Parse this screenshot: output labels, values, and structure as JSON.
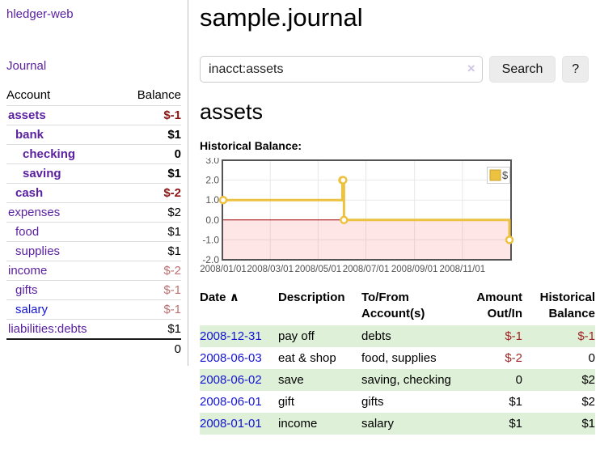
{
  "app": {
    "title": "hledger-web",
    "nav_journal": "Journal"
  },
  "sidebar": {
    "header": {
      "account": "Account",
      "balance": "Balance"
    },
    "accounts": [
      {
        "name": "assets",
        "depth": 0,
        "balance": "$-1",
        "bold": true,
        "neg": "strong"
      },
      {
        "name": "bank",
        "depth": 1,
        "balance": "$1",
        "bold": true,
        "neg": "none"
      },
      {
        "name": "checking",
        "depth": 2,
        "balance": "0",
        "bold": true,
        "neg": "none"
      },
      {
        "name": "saving",
        "depth": 2,
        "balance": "$1",
        "bold": true,
        "neg": "none"
      },
      {
        "name": "cash",
        "depth": 1,
        "balance": "$-2",
        "bold": true,
        "neg": "strong"
      },
      {
        "name": "expenses",
        "depth": 0,
        "balance": "$2",
        "bold": false,
        "neg": "none"
      },
      {
        "name": "food",
        "depth": 1,
        "balance": "$1",
        "bold": false,
        "neg": "none"
      },
      {
        "name": "supplies",
        "depth": 1,
        "balance": "$1",
        "bold": false,
        "neg": "none"
      },
      {
        "name": "income",
        "depth": 0,
        "balance": "$-2",
        "bold": false,
        "neg": "soft"
      },
      {
        "name": "gifts",
        "depth": 1,
        "balance": "$-1",
        "bold": false,
        "neg": "soft"
      },
      {
        "name": "salary",
        "depth": 1,
        "balance": "$-1",
        "bold": false,
        "neg": "soft",
        "blue": true
      },
      {
        "name": "liabilities:debts",
        "depth": 0,
        "balance": "$1",
        "bold": false,
        "neg": "none"
      }
    ],
    "total": "0"
  },
  "main": {
    "title": "sample.journal",
    "search": {
      "value": "inacct:assets",
      "clear_icon": "×",
      "button_label": "Search",
      "help_label": "?"
    },
    "account_heading": "assets",
    "chart_label": "Historical Balance:"
  },
  "chart_data": {
    "type": "line",
    "title": "Historical Balance",
    "step": true,
    "series": [
      {
        "name": "$",
        "color": "#edc240",
        "points": [
          [
            "2008-01-01",
            1
          ],
          [
            "2008-06-01",
            2
          ],
          [
            "2008-06-02",
            2
          ],
          [
            "2008-06-03",
            0
          ],
          [
            "2008-12-31",
            -1
          ]
        ]
      }
    ],
    "x_ticks": [
      "2008/01/01",
      "2008/03/01",
      "2008/05/01",
      "2008/07/01",
      "2008/09/01",
      "2008/11/01"
    ],
    "y_ticks": [
      3.0,
      2.0,
      1.0,
      0.0,
      -1.0,
      -2.0
    ],
    "xlim": [
      "2008-01-01",
      "2009-01-01"
    ],
    "ylim": [
      -2,
      3
    ],
    "grid": true,
    "legend": {
      "label": "$",
      "position": "top-right"
    },
    "colors": {
      "border": "#545454",
      "gridline": "#e8e8e8",
      "tick_text": "#545454",
      "negative_fill": "rgba(255,60,60,0.13)",
      "zero_line": "#a00000",
      "marker_fill": "#ffffff",
      "legend_border": "#cccccc",
      "legend_swatch_border": "#c9a32e"
    }
  },
  "register_table": {
    "sort_icon": "∧",
    "columns": [
      {
        "label": "Date"
      },
      {
        "label": "Description"
      },
      {
        "label": "To/From Account(s)"
      },
      {
        "label": "Amount Out/In"
      },
      {
        "label": "Historical Balance"
      }
    ],
    "rows": [
      {
        "date": "2008-12-31",
        "description": "pay off",
        "accounts": "debts",
        "amount": "$-1",
        "balance": "$-1",
        "amount_neg": true,
        "balance_neg": true,
        "shaded": true
      },
      {
        "date": "2008-06-03",
        "description": "eat & shop",
        "accounts": "food, supplies",
        "amount": "$-2",
        "balance": "0",
        "amount_neg": true,
        "balance_neg": false,
        "shaded": false
      },
      {
        "date": "2008-06-02",
        "description": "save",
        "accounts": "saving, checking",
        "amount": "0",
        "balance": "$2",
        "amount_neg": false,
        "balance_neg": false,
        "shaded": true
      },
      {
        "date": "2008-06-01",
        "description": "gift",
        "accounts": "gifts",
        "amount": "$1",
        "balance": "$2",
        "amount_neg": false,
        "balance_neg": false,
        "shaded": false
      },
      {
        "date": "2008-01-01",
        "description": "income",
        "accounts": "salary",
        "amount": "$1",
        "balance": "$1",
        "amount_neg": false,
        "balance_neg": false,
        "shaded": true
      }
    ]
  }
}
